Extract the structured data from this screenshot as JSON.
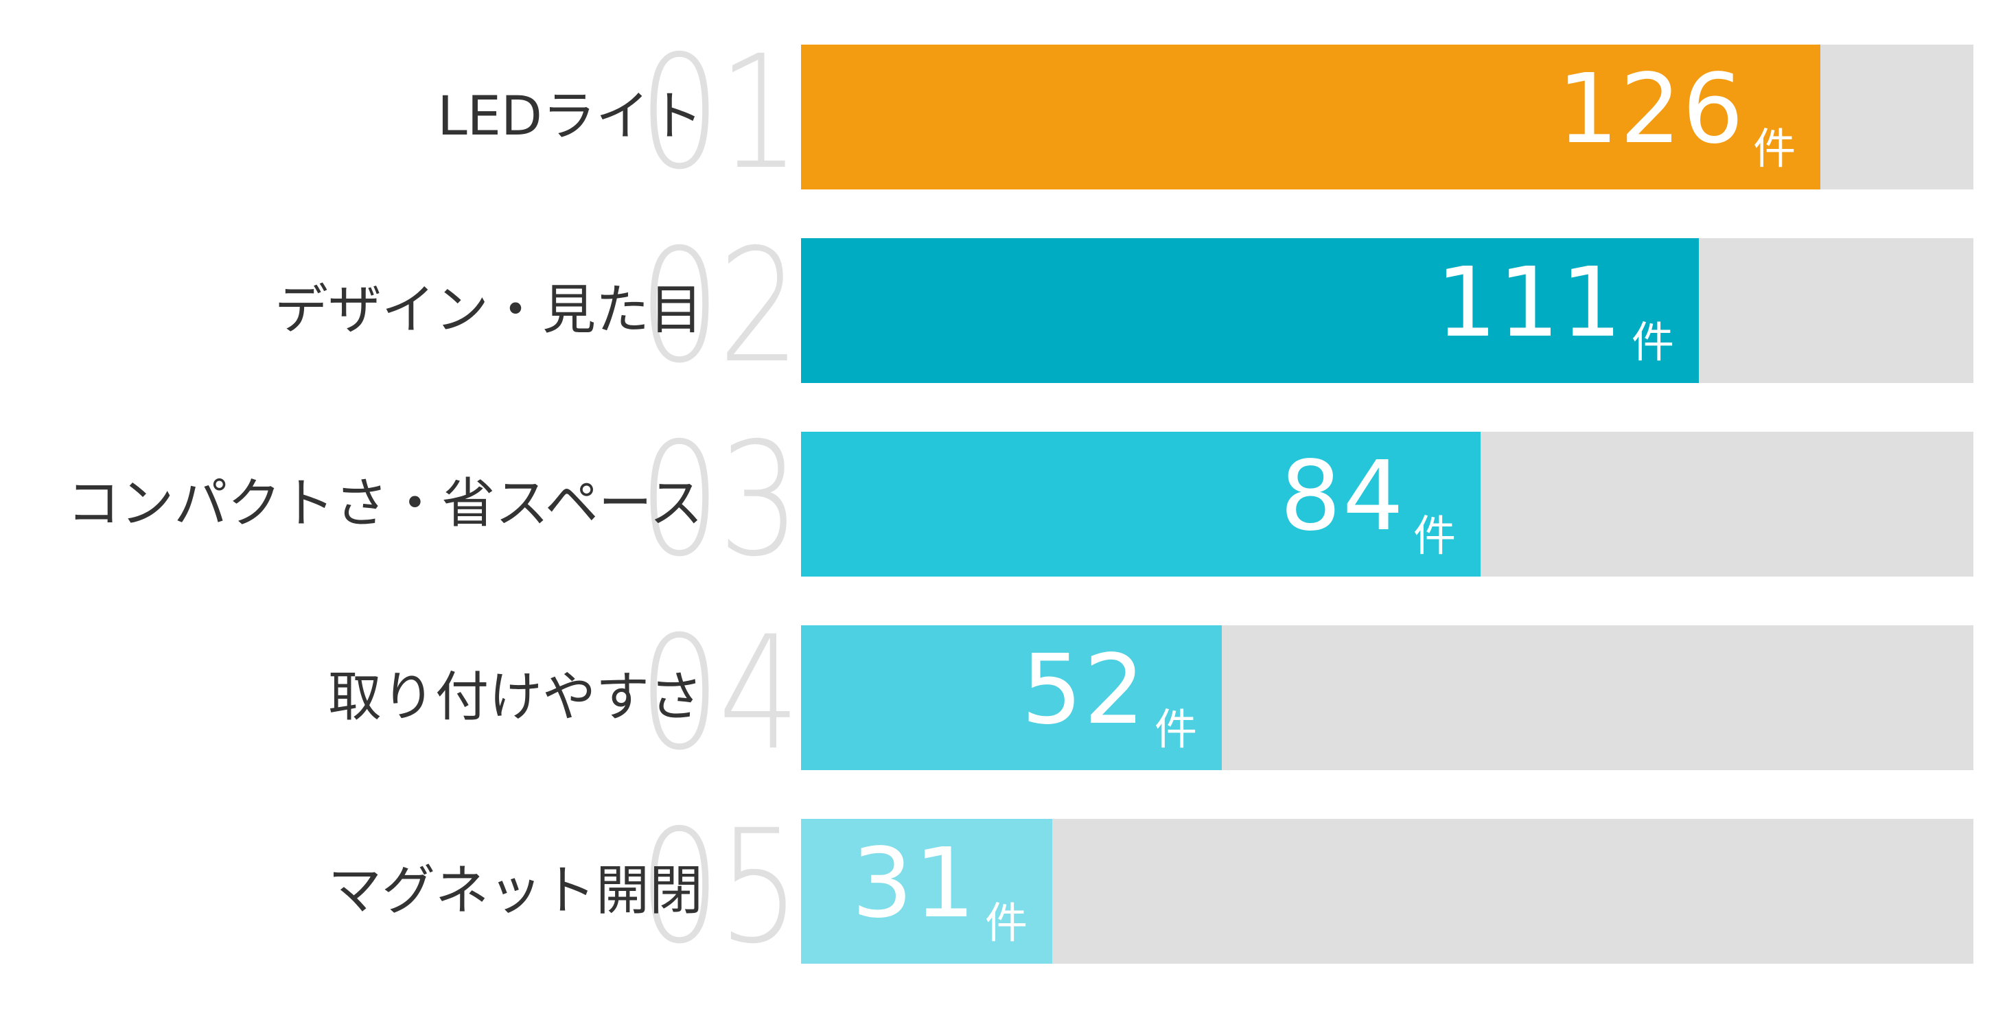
{
  "chart_data": {
    "type": "bar",
    "orientation": "horizontal",
    "title": "",
    "xlabel": "",
    "ylabel": "",
    "unit": "件",
    "xlim": [
      0,
      145
    ],
    "grid": false,
    "legend": null,
    "categories": [
      "LEDライト",
      "デザイン・見た目",
      "コンパクトさ・省スペース",
      "取り付けやすさ",
      "マグネット開閉"
    ],
    "ranks": [
      "01",
      "02",
      "03",
      "04",
      "05"
    ],
    "values": [
      126,
      111,
      84,
      52,
      31
    ],
    "colors": [
      "#f39c12",
      "#00acc1",
      "#26c6da",
      "#4dd0e1",
      "#80deea"
    ],
    "track_color": "#dfdfdf"
  },
  "rows": [
    {
      "rank": "01",
      "label": "LEDライト",
      "value": "126",
      "unit": "件",
      "color": "#f39c12",
      "pct": 86.95
    },
    {
      "rank": "02",
      "label": "デザイン・見た目",
      "value": "111",
      "unit": "件",
      "color": "#00acc1",
      "pct": 76.58
    },
    {
      "rank": "03",
      "label": "コンパクトさ・省スペース",
      "value": "84",
      "unit": "件",
      "color": "#26c6da",
      "pct": 57.96
    },
    {
      "rank": "04",
      "label": "取り付けやすさ",
      "value": "52",
      "unit": "件",
      "color": "#4dd0e1",
      "pct": 35.89
    },
    {
      "rank": "05",
      "label": "マグネット開閉",
      "value": "31",
      "unit": "件",
      "color": "#80deea",
      "pct": 21.43
    }
  ]
}
